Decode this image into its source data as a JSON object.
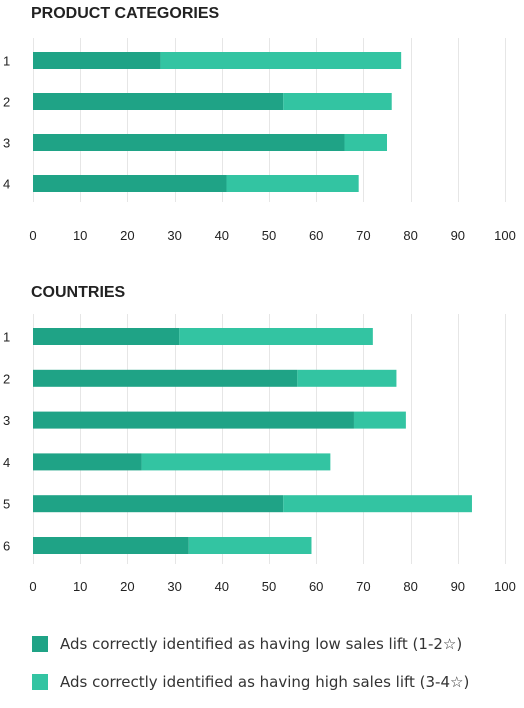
{
  "colors": {
    "low": "#1fa386",
    "high": "#33c4a2"
  },
  "legend": [
    {
      "key": "low",
      "label": "Ads correctly identified as having low sales lift (1-2☆)"
    },
    {
      "key": "high",
      "label": "Ads correctly identified as having high sales lift (3-4☆)"
    }
  ],
  "chart_data": [
    {
      "type": "bar",
      "orientation": "horizontal",
      "stacked": true,
      "title": "PRODUCT CATEGORIES",
      "categories": [
        "1",
        "2",
        "3",
        "4"
      ],
      "series": [
        {
          "name": "Ads correctly identified as having low sales lift (1-2☆)",
          "values": [
            27,
            53,
            66,
            41
          ]
        },
        {
          "name": "Ads correctly identified as having high sales lift (3-4☆)",
          "values": [
            51,
            23,
            9,
            28
          ]
        }
      ],
      "xlim": [
        0,
        100
      ],
      "xticks": [
        0,
        10,
        20,
        30,
        40,
        50,
        60,
        70,
        80,
        90,
        100
      ],
      "grid": true,
      "legend_position": "bottom"
    },
    {
      "type": "bar",
      "orientation": "horizontal",
      "stacked": true,
      "title": "COUNTRIES",
      "categories": [
        "1",
        "2",
        "3",
        "4",
        "5",
        "6"
      ],
      "series": [
        {
          "name": "Ads correctly identified as having low sales lift (1-2☆)",
          "values": [
            31,
            56,
            68,
            23,
            53,
            33
          ]
        },
        {
          "name": "Ads correctly identified as having high sales lift (3-4☆)",
          "values": [
            41,
            21,
            11,
            40,
            40,
            26
          ]
        }
      ],
      "xlim": [
        0,
        100
      ],
      "xticks": [
        0,
        10,
        20,
        30,
        40,
        50,
        60,
        70,
        80,
        90,
        100
      ],
      "grid": true,
      "legend_position": "bottom"
    }
  ]
}
